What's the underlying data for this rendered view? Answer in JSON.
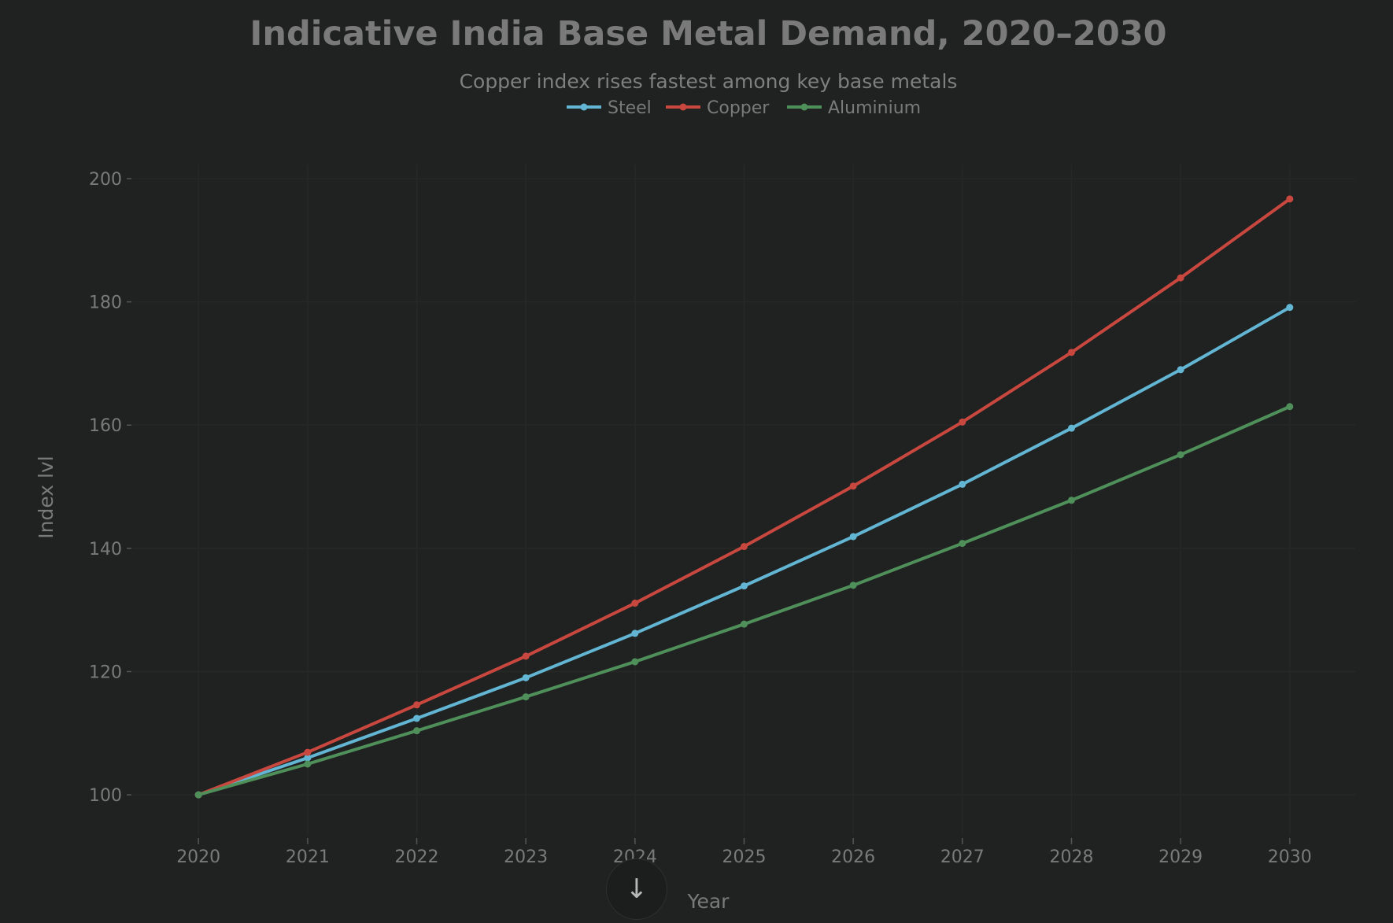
{
  "chart_data": {
    "type": "line",
    "title": "Indicative India Base Metal Demand, 2020–2030",
    "subtitle": "Copper index rises fastest among key base metals",
    "xlabel": "Year",
    "ylabel": "Index lvl",
    "x": [
      2020,
      2021,
      2022,
      2023,
      2024,
      2025,
      2026,
      2027,
      2028,
      2029,
      2030
    ],
    "xlim": [
      2019.4,
      2030.6
    ],
    "ylim": [
      93.5,
      202.3
    ],
    "yticks": [
      100,
      120,
      140,
      160,
      180,
      200
    ],
    "grid": true,
    "legend": "top-center",
    "series": [
      {
        "name": "Steel",
        "color": "#62b6d3",
        "values": [
          100,
          106.0,
          112.4,
          119.0,
          126.2,
          133.9,
          141.9,
          150.4,
          159.5,
          169.0,
          179.1
        ]
      },
      {
        "name": "Copper",
        "color": "#c8473f",
        "values": [
          100,
          106.9,
          114.6,
          122.5,
          131.1,
          140.3,
          150.1,
          160.5,
          171.8,
          183.9,
          196.7
        ]
      },
      {
        "name": "Aluminium",
        "color": "#4f8f5a",
        "values": [
          100,
          105.0,
          110.4,
          115.9,
          121.6,
          127.7,
          134.0,
          140.8,
          147.8,
          155.2,
          163.0
        ]
      }
    ]
  },
  "colors": {
    "background": "#202221",
    "text": "#7a7a7a",
    "grid": "#262827"
  },
  "scroll_button": {
    "icon": "arrow-down-icon",
    "glyph": "↓"
  }
}
